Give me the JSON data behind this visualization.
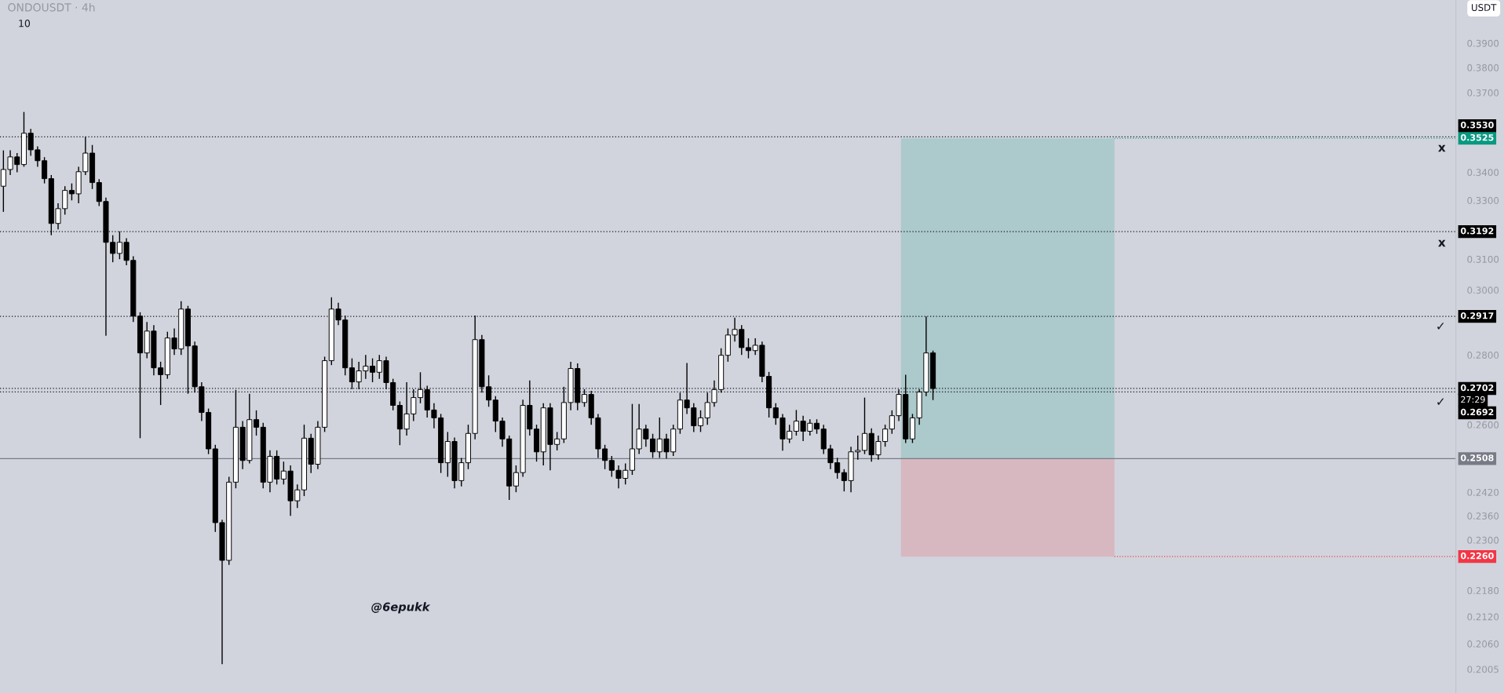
{
  "chart_data": {
    "type": "candlestick",
    "title": "ONDOUSDT · 4h",
    "categories": [
      null,
      null,
      null,
      null,
      null,
      null,
      null,
      null,
      null,
      null,
      null,
      null,
      null,
      null,
      null,
      null,
      null,
      null,
      null,
      null,
      null,
      null,
      null,
      null,
      null,
      null,
      null,
      null,
      null,
      null,
      null,
      null,
      null,
      null,
      null,
      null,
      null,
      null,
      null,
      null,
      null,
      null,
      null,
      null,
      null,
      null,
      null,
      null,
      null,
      null,
      null,
      null,
      null,
      null,
      null,
      null,
      null,
      null,
      null,
      null,
      null,
      null,
      null,
      null,
      null,
      null,
      null,
      null,
      null,
      null,
      null,
      null,
      null,
      null,
      null,
      null,
      null,
      null,
      null,
      null,
      null,
      null,
      null,
      null,
      null,
      null,
      null,
      null,
      null,
      null,
      null,
      null,
      null,
      null,
      null,
      null,
      null,
      null,
      null,
      null,
      null,
      null,
      null,
      null,
      null,
      null,
      null,
      null,
      null,
      null,
      null,
      null,
      null,
      null,
      null,
      null,
      null,
      null,
      null,
      null,
      null,
      null,
      null,
      null,
      null,
      null,
      null,
      null,
      null,
      null,
      null,
      null,
      null,
      null,
      null,
      null,
      null,
      null,
      null,
      null,
      null,
      null,
      null,
      null,
      null,
      null,
      null,
      null,
      null,
      null,
      null,
      null,
      null,
      null,
      null,
      null,
      null,
      null,
      null,
      null,
      null,
      null,
      null,
      null,
      null,
      null,
      null,
      null,
      null,
      null,
      null,
      null,
      null,
      null,
      null,
      null,
      null,
      null,
      null,
      null,
      null,
      null,
      null,
      null,
      null,
      null,
      null,
      null,
      null,
      null,
      null,
      null,
      null,
      null,
      null,
      null,
      null,
      null,
      null,
      null,
      null,
      null,
      null,
      null,
      null,
      null,
      null,
      null,
      null,
      null,
      null,
      null,
      null
    ],
    "ohlc": [
      [
        0.335,
        0.348,
        0.326,
        0.341
      ],
      [
        0.341,
        0.348,
        0.339,
        0.3456
      ],
      [
        0.3456,
        0.347,
        0.34,
        0.3428
      ],
      [
        0.3428,
        0.3625,
        0.342,
        0.3544
      ],
      [
        0.3544,
        0.356,
        0.346,
        0.3482
      ],
      [
        0.3482,
        0.3495,
        0.342,
        0.3442
      ],
      [
        0.3442,
        0.3455,
        0.336,
        0.3377
      ],
      [
        0.3377,
        0.339,
        0.318,
        0.322
      ],
      [
        0.322,
        0.329,
        0.32,
        0.3271
      ],
      [
        0.3271,
        0.335,
        0.325,
        0.3335
      ],
      [
        0.3335,
        0.336,
        0.33,
        0.3323
      ],
      [
        0.3323,
        0.342,
        0.329,
        0.3402
      ],
      [
        0.3402,
        0.353,
        0.339,
        0.347
      ],
      [
        0.347,
        0.35,
        0.334,
        0.3363
      ],
      [
        0.3363,
        0.3375,
        0.328,
        0.3296
      ],
      [
        0.3296,
        0.331,
        0.2858,
        0.3156
      ],
      [
        0.3156,
        0.318,
        0.309,
        0.3119
      ],
      [
        0.3119,
        0.3193,
        0.31,
        0.3156
      ],
      [
        0.3156,
        0.317,
        0.308,
        0.3096
      ],
      [
        0.3096,
        0.311,
        0.29,
        0.2918
      ],
      [
        0.2918,
        0.293,
        0.2563,
        0.2806
      ],
      [
        0.2806,
        0.29,
        0.279,
        0.2872
      ],
      [
        0.2872,
        0.289,
        0.274,
        0.2762
      ],
      [
        0.2762,
        0.278,
        0.2655,
        0.2742
      ],
      [
        0.2742,
        0.287,
        0.273,
        0.2851
      ],
      [
        0.2851,
        0.288,
        0.28,
        0.2818
      ],
      [
        0.2818,
        0.2965,
        0.28,
        0.294
      ],
      [
        0.294,
        0.295,
        0.2687,
        0.2827
      ],
      [
        0.2827,
        0.284,
        0.269,
        0.2707
      ],
      [
        0.2707,
        0.272,
        0.261,
        0.2634
      ],
      [
        0.2634,
        0.2645,
        0.252,
        0.2534
      ],
      [
        0.2534,
        0.2545,
        0.232,
        0.2343
      ],
      [
        0.2343,
        0.235,
        0.2016,
        0.2251
      ],
      [
        0.2251,
        0.246,
        0.224,
        0.2446
      ],
      [
        0.2446,
        0.2698,
        0.243,
        0.2593
      ],
      [
        0.2593,
        0.261,
        0.248,
        0.2503
      ],
      [
        0.2503,
        0.2687,
        0.2495,
        0.2614
      ],
      [
        0.2614,
        0.264,
        0.257,
        0.2593
      ],
      [
        0.2593,
        0.2605,
        0.243,
        0.2446
      ],
      [
        0.2446,
        0.253,
        0.242,
        0.2514
      ],
      [
        0.2514,
        0.253,
        0.244,
        0.2454
      ],
      [
        0.2454,
        0.25,
        0.244,
        0.2475
      ],
      [
        0.2475,
        0.249,
        0.236,
        0.2398
      ],
      [
        0.2398,
        0.244,
        0.238,
        0.2426
      ],
      [
        0.2426,
        0.26,
        0.241,
        0.2563
      ],
      [
        0.2563,
        0.2575,
        0.247,
        0.2493
      ],
      [
        0.2493,
        0.261,
        0.248,
        0.2593
      ],
      [
        0.2593,
        0.2795,
        0.258,
        0.2783
      ],
      [
        0.2783,
        0.2977,
        0.277,
        0.294
      ],
      [
        0.294,
        0.296,
        0.289,
        0.2906
      ],
      [
        0.2906,
        0.292,
        0.274,
        0.2762
      ],
      [
        0.2762,
        0.279,
        0.27,
        0.2721
      ],
      [
        0.2721,
        0.278,
        0.27,
        0.2753
      ],
      [
        0.2753,
        0.28,
        0.273,
        0.2767
      ],
      [
        0.2767,
        0.279,
        0.272,
        0.2749
      ],
      [
        0.2749,
        0.28,
        0.273,
        0.2783
      ],
      [
        0.2783,
        0.2795,
        0.27,
        0.2719
      ],
      [
        0.2719,
        0.273,
        0.264,
        0.2654
      ],
      [
        0.2654,
        0.2665,
        0.2544,
        0.2588
      ],
      [
        0.2588,
        0.272,
        0.257,
        0.263
      ],
      [
        0.263,
        0.27,
        0.261,
        0.2676
      ],
      [
        0.2676,
        0.2749,
        0.266,
        0.2699
      ],
      [
        0.2699,
        0.271,
        0.262,
        0.2641
      ],
      [
        0.2641,
        0.266,
        0.259,
        0.2619
      ],
      [
        0.2619,
        0.263,
        0.247,
        0.2497
      ],
      [
        0.2497,
        0.258,
        0.246,
        0.2554
      ],
      [
        0.2554,
        0.2565,
        0.243,
        0.245
      ],
      [
        0.245,
        0.251,
        0.2435,
        0.2497
      ],
      [
        0.2497,
        0.26,
        0.248,
        0.2576
      ],
      [
        0.2576,
        0.292,
        0.256,
        0.2846
      ],
      [
        0.2846,
        0.286,
        0.269,
        0.2707
      ],
      [
        0.2707,
        0.274,
        0.265,
        0.2669
      ],
      [
        0.2669,
        0.268,
        0.258,
        0.261
      ],
      [
        0.261,
        0.262,
        0.254,
        0.2561
      ],
      [
        0.2561,
        0.257,
        0.24,
        0.2436
      ],
      [
        0.2436,
        0.249,
        0.242,
        0.2471
      ],
      [
        0.2471,
        0.267,
        0.246,
        0.2654
      ],
      [
        0.2654,
        0.2725,
        0.257,
        0.2588
      ],
      [
        0.2588,
        0.26,
        0.25,
        0.2526
      ],
      [
        0.2526,
        0.266,
        0.249,
        0.2647
      ],
      [
        0.2647,
        0.266,
        0.2477,
        0.2546
      ],
      [
        0.2546,
        0.258,
        0.253,
        0.2561
      ],
      [
        0.2561,
        0.2707,
        0.255,
        0.2662
      ],
      [
        0.2662,
        0.278,
        0.264,
        0.276
      ],
      [
        0.276,
        0.2775,
        0.264,
        0.2662
      ],
      [
        0.2662,
        0.27,
        0.265,
        0.2685
      ],
      [
        0.2685,
        0.2695,
        0.26,
        0.2619
      ],
      [
        0.2619,
        0.263,
        0.251,
        0.2534
      ],
      [
        0.2534,
        0.2545,
        0.248,
        0.2503
      ],
      [
        0.2503,
        0.2515,
        0.246,
        0.2477
      ],
      [
        0.2477,
        0.249,
        0.243,
        0.2456
      ],
      [
        0.2456,
        0.2495,
        0.244,
        0.2477
      ],
      [
        0.2477,
        0.2658,
        0.2465,
        0.2534
      ],
      [
        0.2534,
        0.2658,
        0.252,
        0.2588
      ],
      [
        0.2588,
        0.26,
        0.254,
        0.2561
      ],
      [
        0.2561,
        0.2575,
        0.251,
        0.2526
      ],
      [
        0.2526,
        0.262,
        0.251,
        0.2561
      ],
      [
        0.2561,
        0.2575,
        0.2508,
        0.2526
      ],
      [
        0.2526,
        0.26,
        0.2515,
        0.2588
      ],
      [
        0.2588,
        0.269,
        0.2575,
        0.2669
      ],
      [
        0.2669,
        0.2776,
        0.263,
        0.2647
      ],
      [
        0.2647,
        0.266,
        0.258,
        0.2597
      ],
      [
        0.2597,
        0.264,
        0.258,
        0.2619
      ],
      [
        0.2619,
        0.269,
        0.26,
        0.2662
      ],
      [
        0.2662,
        0.2725,
        0.265,
        0.2699
      ],
      [
        0.2699,
        0.282,
        0.269,
        0.2799
      ],
      [
        0.2799,
        0.288,
        0.278,
        0.286
      ],
      [
        0.286,
        0.2913,
        0.284,
        0.2877
      ],
      [
        0.2877,
        0.289,
        0.28,
        0.2822
      ],
      [
        0.2822,
        0.285,
        0.279,
        0.2813
      ],
      [
        0.2813,
        0.285,
        0.28,
        0.2829
      ],
      [
        0.2829,
        0.284,
        0.272,
        0.2737
      ],
      [
        0.2737,
        0.275,
        0.262,
        0.2647
      ],
      [
        0.2647,
        0.266,
        0.26,
        0.2619
      ],
      [
        0.2619,
        0.263,
        0.2529,
        0.2561
      ],
      [
        0.2561,
        0.26,
        0.255,
        0.2582
      ],
      [
        0.2582,
        0.2641,
        0.257,
        0.261
      ],
      [
        0.261,
        0.2625,
        0.2555,
        0.2582
      ],
      [
        0.2582,
        0.2615,
        0.257,
        0.2604
      ],
      [
        0.2604,
        0.2615,
        0.2575,
        0.2588
      ],
      [
        0.2588,
        0.26,
        0.252,
        0.2534
      ],
      [
        0.2534,
        0.2545,
        0.248,
        0.2497
      ],
      [
        0.2497,
        0.251,
        0.2455,
        0.2471
      ],
      [
        0.2471,
        0.248,
        0.2422,
        0.245
      ],
      [
        0.245,
        0.254,
        0.242,
        0.2526
      ],
      [
        0.2526,
        0.257,
        0.2505,
        0.253
      ],
      [
        0.253,
        0.2676,
        0.252,
        0.2576
      ],
      [
        0.2576,
        0.259,
        0.25,
        0.2518
      ],
      [
        0.2518,
        0.257,
        0.2505,
        0.2554
      ],
      [
        0.2554,
        0.26,
        0.254,
        0.2588
      ],
      [
        0.2588,
        0.264,
        0.2575,
        0.2625
      ],
      [
        0.2625,
        0.27,
        0.261,
        0.2685
      ],
      [
        0.2685,
        0.2742,
        0.255,
        0.2561
      ],
      [
        0.2561,
        0.263,
        0.255,
        0.2619
      ],
      [
        0.2619,
        0.27,
        0.26,
        0.2692
      ],
      [
        0.2692,
        0.2917,
        0.268,
        0.2806
      ],
      [
        0.2806,
        0.2813,
        0.2669,
        0.2702
      ],
      null,
      null,
      null,
      null,
      null,
      null,
      null,
      null,
      null,
      null,
      null,
      null,
      null,
      null,
      null,
      null,
      null,
      null,
      null,
      null,
      null,
      null,
      null,
      null,
      null,
      null,
      null,
      null,
      null,
      null,
      null,
      null,
      null,
      null,
      null,
      null,
      null,
      null,
      null,
      null,
      null,
      null,
      null,
      null,
      null,
      null,
      null,
      null,
      null,
      null,
      null,
      null,
      null,
      null,
      null,
      null,
      null,
      null,
      null,
      null,
      null,
      null,
      null,
      null,
      null,
      null,
      null,
      null,
      null,
      null,
      null,
      null,
      null,
      null,
      null,
      null
    ],
    "log": "y",
    "ylim": [
      0.1955,
      0.4083
    ],
    "yticks": [
      {
        "value": 0.39,
        "label": "0.3900"
      },
      {
        "value": 0.38,
        "label": "0.3800"
      },
      {
        "value": 0.37,
        "label": "0.3700"
      },
      {
        "value": 0.34,
        "label": "0.3400"
      },
      {
        "value": 0.33,
        "label": "0.3300"
      },
      {
        "value": 0.31,
        "label": "0.3100"
      },
      {
        "value": 0.3,
        "label": "0.3000"
      },
      {
        "value": 0.28,
        "label": "0.2800"
      },
      {
        "value": 0.26,
        "label": "0.2600"
      },
      {
        "value": 0.242,
        "label": "0.2420"
      },
      {
        "value": 0.236,
        "label": "0.2360"
      },
      {
        "value": 0.23,
        "label": "0.2300"
      },
      {
        "value": 0.218,
        "label": "0.2180"
      },
      {
        "value": 0.212,
        "label": "0.2120"
      },
      {
        "value": 0.206,
        "label": "0.2060"
      },
      {
        "value": 0.2005,
        "label": "0.2005"
      }
    ],
    "tick_labels": "y",
    "ref_lines": [
      {
        "axis": "y",
        "value": 0.353,
        "label": "0.3530",
        "color": "#131722",
        "line_style": "dotted"
      },
      {
        "axis": "y",
        "value": 0.3192,
        "label": "0.3192",
        "color": "#131722",
        "line_style": "dotted"
      },
      {
        "axis": "y",
        "value": 0.2917,
        "label": "0.2917",
        "color": "#131722",
        "line_style": "dotted"
      },
      {
        "axis": "y",
        "value": 0.2702,
        "label": "0.2702",
        "color": "#131722",
        "line_style": "dotted"
      },
      {
        "axis": "y",
        "value": 0.2692,
        "label": "0.2692",
        "color": "#131722",
        "line_style": "dotted"
      },
      {
        "axis": "y",
        "value": 0.2508,
        "label": "0.2508",
        "color": "#787b86",
        "line_style": "solid"
      }
    ],
    "bands": [
      {
        "axis": "y",
        "from": 0.2508,
        "to": 0.3525,
        "label": "0.3525",
        "color": "#089981"
      },
      {
        "axis": "y",
        "from": 0.226,
        "to": 0.2508,
        "label": "0.2260",
        "color": "#f23645"
      }
    ],
    "annotations": [
      "10",
      "USDT",
      "@6epukk",
      "27:29",
      "x",
      "x",
      "✓",
      "✓"
    ]
  }
}
